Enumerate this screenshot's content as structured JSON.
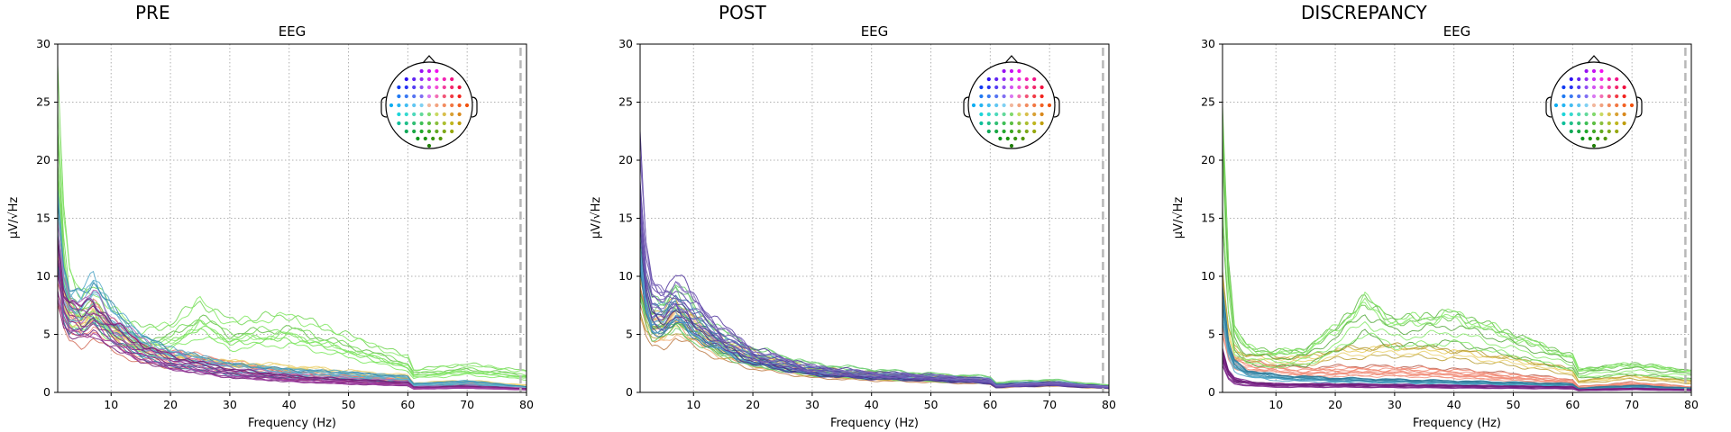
{
  "chart_data": [
    {
      "type": "line",
      "suptitle": "PRE",
      "title": "EEG",
      "xlabel": "Frequency (Hz)",
      "ylabel": "µV/√Hz",
      "xlim": [
        1,
        80
      ],
      "ylim": [
        0,
        30
      ],
      "xticks": [
        10,
        20,
        30,
        40,
        50,
        60,
        70,
        80
      ],
      "yticks": [
        0,
        5,
        10,
        15,
        20,
        25,
        30
      ],
      "grid": true,
      "cutoff_hz": 79,
      "inset": "sensor head map (top-right)",
      "groups": [
        {
          "name": "red-orange channels",
          "color": "#f0806a",
          "count": 9,
          "x": [
            1,
            2,
            3,
            5,
            7,
            10,
            15,
            20,
            30,
            40,
            50,
            60,
            61,
            70,
            80
          ],
          "values": [
            10,
            7.5,
            6,
            5.5,
            6.5,
            5,
            3.5,
            3,
            2.2,
            1.5,
            1.2,
            0.9,
            0.4,
            0.7,
            0.4
          ]
        },
        {
          "name": "yellow channels",
          "color": "#e6c64c",
          "count": 5,
          "x": [
            1,
            2,
            3,
            5,
            7,
            10,
            15,
            20,
            30,
            40,
            50,
            60,
            61,
            70,
            80
          ],
          "values": [
            12,
            8,
            6.5,
            6,
            7,
            5.5,
            3.8,
            3.2,
            2.6,
            2.2,
            1.8,
            1.4,
            0.8,
            1.0,
            0.6
          ]
        },
        {
          "name": "green channels (high-frequency bump)",
          "color": "#7ee860",
          "count": 9,
          "x": [
            1,
            2,
            3,
            5,
            7,
            10,
            15,
            20,
            25,
            30,
            40,
            50,
            60,
            61,
            70,
            80
          ],
          "values": [
            22,
            13,
            8.5,
            7,
            7.5,
            6,
            4.5,
            4.8,
            6.5,
            5,
            5.5,
            4,
            2.5,
            1.6,
            2,
            1.5
          ]
        },
        {
          "name": "teal-blue channels",
          "color": "#3f9ec2",
          "count": 11,
          "x": [
            1,
            2,
            3,
            5,
            7,
            10,
            15,
            20,
            30,
            40,
            50,
            60,
            61,
            70,
            80
          ],
          "values": [
            14,
            8.5,
            7,
            7,
            8,
            6,
            4,
            3,
            2,
            1.6,
            1.4,
            1.1,
            0.6,
            0.8,
            0.4
          ]
        },
        {
          "name": "purple-magenta channels",
          "color": "#9a2f9e",
          "count": 12,
          "x": [
            1,
            2,
            3,
            5,
            7,
            10,
            15,
            20,
            30,
            40,
            50,
            60,
            61,
            70,
            80
          ],
          "values": [
            12,
            8,
            7,
            6.5,
            7,
            5.5,
            3.8,
            2.8,
            1.8,
            1.3,
            1.0,
            0.8,
            0.4,
            0.5,
            0.3
          ]
        }
      ]
    },
    {
      "type": "line",
      "suptitle": "POST",
      "title": "EEG",
      "xlabel": "Frequency (Hz)",
      "ylabel": "µV/√Hz",
      "xlim": [
        1,
        80
      ],
      "ylim": [
        0,
        30
      ],
      "xticks": [
        10,
        20,
        30,
        40,
        50,
        60,
        70,
        80
      ],
      "yticks": [
        0,
        5,
        10,
        15,
        20,
        25,
        30
      ],
      "grid": true,
      "cutoff_hz": 79,
      "inset": "sensor head map (top-right)",
      "groups": [
        {
          "name": "red-orange channels",
          "color": "#f0a060",
          "count": 9,
          "x": [
            1,
            2,
            3,
            5,
            7,
            10,
            15,
            20,
            30,
            40,
            50,
            60,
            61,
            70,
            80
          ],
          "values": [
            8,
            6,
            5,
            5,
            6,
            5,
            3.5,
            2.6,
            1.6,
            1.3,
            1.1,
            0.9,
            0.5,
            0.7,
            0.4
          ]
        },
        {
          "name": "yellow channels",
          "color": "#e2c444",
          "count": 5,
          "x": [
            1,
            2,
            3,
            5,
            7,
            10,
            15,
            20,
            30,
            40,
            50,
            60,
            61,
            70,
            80
          ],
          "values": [
            9,
            6.5,
            5.5,
            5.5,
            6.5,
            5.5,
            3.8,
            2.8,
            1.7,
            1.4,
            1.2,
            1.0,
            0.6,
            0.8,
            0.5
          ]
        },
        {
          "name": "green channels",
          "color": "#5cc860",
          "count": 9,
          "x": [
            1,
            2,
            3,
            5,
            7,
            10,
            15,
            20,
            30,
            40,
            50,
            60,
            61,
            70,
            80
          ],
          "values": [
            11,
            8,
            6.5,
            6.5,
            7.5,
            6,
            4.2,
            3.1,
            2.0,
            1.6,
            1.3,
            1.1,
            0.7,
            0.9,
            0.5
          ]
        },
        {
          "name": "teal-blue channels",
          "color": "#3f8fc2",
          "count": 11,
          "x": [
            1,
            2,
            3,
            5,
            7,
            10,
            15,
            20,
            30,
            40,
            50,
            60,
            61,
            70,
            80
          ],
          "values": [
            14,
            9,
            7,
            7,
            8,
            6.5,
            4.5,
            3.2,
            2.0,
            1.6,
            1.4,
            1.1,
            0.7,
            0.9,
            0.5
          ]
        },
        {
          "name": "purple-navy channels",
          "color": "#5a3fa8",
          "count": 12,
          "x": [
            1,
            2,
            3,
            5,
            7,
            10,
            15,
            20,
            30,
            40,
            50,
            60,
            61,
            70,
            80
          ],
          "values": [
            17,
            10,
            7.5,
            7,
            8,
            6.5,
            4.5,
            3.0,
            1.8,
            1.4,
            1.2,
            0.9,
            0.5,
            0.7,
            0.4
          ]
        }
      ]
    },
    {
      "type": "line",
      "suptitle": "DISCREPANCY",
      "title": "EEG",
      "xlabel": "Frequency (Hz)",
      "ylabel": "µV/√Hz",
      "xlim": [
        1,
        80
      ],
      "ylim": [
        0,
        30
      ],
      "xticks": [
        10,
        20,
        30,
        40,
        50,
        60,
        70,
        80
      ],
      "yticks": [
        0,
        5,
        10,
        15,
        20,
        25,
        30
      ],
      "grid": true,
      "cutoff_hz": 79,
      "inset": "sensor head map (top-right)",
      "groups": [
        {
          "name": "red-orange channels",
          "color": "#f0806a",
          "count": 9,
          "x": [
            1,
            2,
            3,
            5,
            7,
            10,
            15,
            20,
            30,
            40,
            50,
            60,
            61,
            70,
            80
          ],
          "values": [
            6,
            3.5,
            2.6,
            2.2,
            2.1,
            1.9,
            1.7,
            1.8,
            1.8,
            1.6,
            1.3,
            0.9,
            0.4,
            0.7,
            0.4
          ]
        },
        {
          "name": "yellow channels",
          "color": "#e6c64c",
          "count": 5,
          "x": [
            1,
            2,
            3,
            5,
            7,
            10,
            15,
            20,
            30,
            40,
            50,
            60,
            61,
            70,
            80
          ],
          "values": [
            8,
            4.5,
            3.2,
            2.7,
            2.6,
            2.5,
            2.5,
            3.0,
            3.3,
            3.0,
            2.4,
            1.6,
            0.8,
            1.2,
            0.8
          ]
        },
        {
          "name": "green channels (high-frequency bump)",
          "color": "#7ee860",
          "count": 9,
          "x": [
            1,
            2,
            3,
            5,
            7,
            10,
            15,
            20,
            25,
            30,
            40,
            50,
            60,
            61,
            70,
            80
          ],
          "values": [
            20,
            9,
            4.5,
            3.2,
            3,
            2.8,
            3,
            4.5,
            6.5,
            5,
            5.5,
            4,
            2.5,
            1.6,
            2,
            1.5
          ]
        },
        {
          "name": "teal-blue channels",
          "color": "#3f9ec2",
          "count": 11,
          "x": [
            1,
            2,
            3,
            5,
            7,
            10,
            15,
            20,
            30,
            40,
            50,
            60,
            61,
            70,
            80
          ],
          "values": [
            7,
            3.5,
            2.2,
            1.6,
            1.4,
            1.2,
            1.1,
            1.0,
            0.9,
            0.8,
            0.7,
            0.6,
            0.3,
            0.5,
            0.3
          ]
        },
        {
          "name": "purple-magenta channels",
          "color": "#7a1f88",
          "count": 12,
          "x": [
            1,
            2,
            3,
            5,
            7,
            10,
            15,
            20,
            30,
            40,
            50,
            60,
            61,
            70,
            80
          ],
          "values": [
            3,
            1.5,
            1.0,
            0.8,
            0.7,
            0.6,
            0.6,
            0.6,
            0.55,
            0.5,
            0.45,
            0.4,
            0.2,
            0.3,
            0.2
          ]
        }
      ]
    }
  ]
}
